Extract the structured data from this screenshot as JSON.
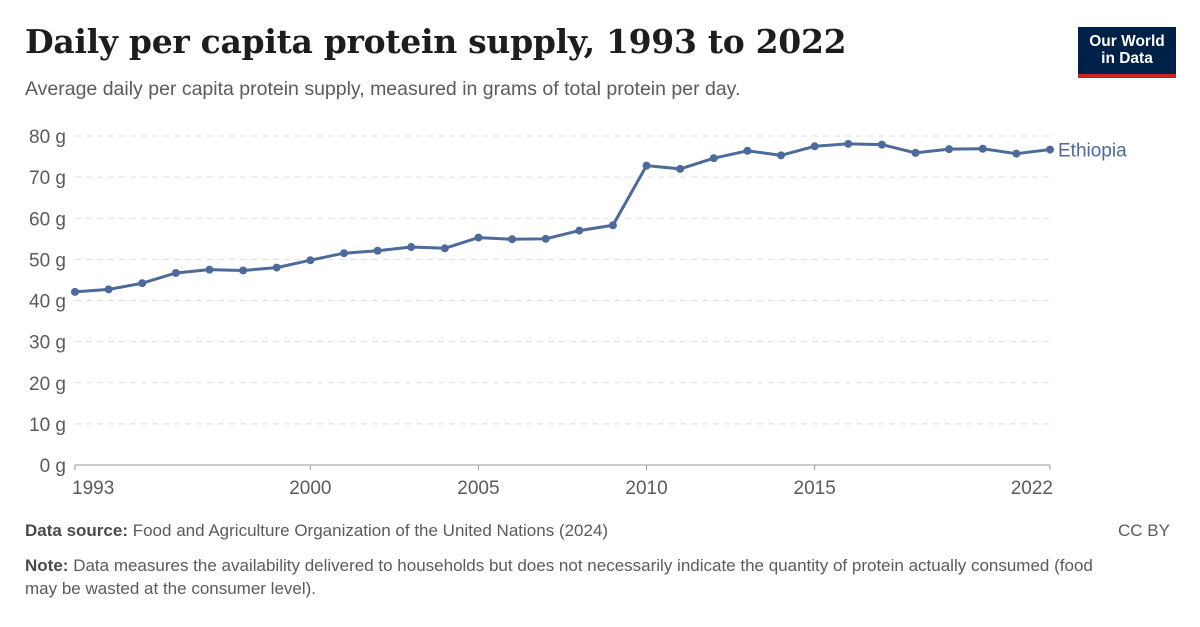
{
  "header": {
    "title": "Daily per capita protein supply, 1993 to 2022",
    "subtitle": "Average daily per capita protein supply, measured in grams of total protein per day."
  },
  "logo": {
    "line1": "Our World",
    "line2": "in Data",
    "bg_color": "#002147",
    "accent_color": "#ce261e"
  },
  "footer": {
    "source_label": "Data source:",
    "source_text": "Food and Agriculture Organization of the United Nations (2024)",
    "note_label": "Note:",
    "note_text": "Data measures the availability delivered to households but does not necessarily indicate the quantity of protein actually consumed (food may be wasted at the consumer level).",
    "license": "CC BY"
  },
  "chart_data": {
    "type": "line",
    "title": "Daily per capita protein supply, 1993 to 2022",
    "xlabel": "",
    "ylabel": "",
    "xlim": [
      1993,
      2022
    ],
    "ylim": [
      0,
      80
    ],
    "y_unit": "g",
    "y_ticks": [
      0,
      10,
      20,
      30,
      40,
      50,
      60,
      70,
      80
    ],
    "x_ticks": [
      1993,
      2000,
      2005,
      2010,
      2015,
      2022
    ],
    "grid": "horizontal dashed",
    "series": [
      {
        "name": "Ethiopia",
        "color": "#4c6a9c",
        "x": [
          1993,
          1994,
          1995,
          1996,
          1997,
          1998,
          1999,
          2000,
          2001,
          2002,
          2003,
          2004,
          2005,
          2006,
          2007,
          2008,
          2009,
          2010,
          2011,
          2012,
          2013,
          2014,
          2015,
          2016,
          2017,
          2018,
          2019,
          2020,
          2021,
          2022
        ],
        "values": [
          42.1,
          42.7,
          44.2,
          46.7,
          47.5,
          47.3,
          48.0,
          49.8,
          51.5,
          52.1,
          53.0,
          52.7,
          55.3,
          54.9,
          55.0,
          57.0,
          58.3,
          72.8,
          72.0,
          74.6,
          76.4,
          75.3,
          77.5,
          78.1,
          77.9,
          75.9,
          76.8,
          76.9,
          75.7,
          76.7
        ]
      }
    ]
  }
}
